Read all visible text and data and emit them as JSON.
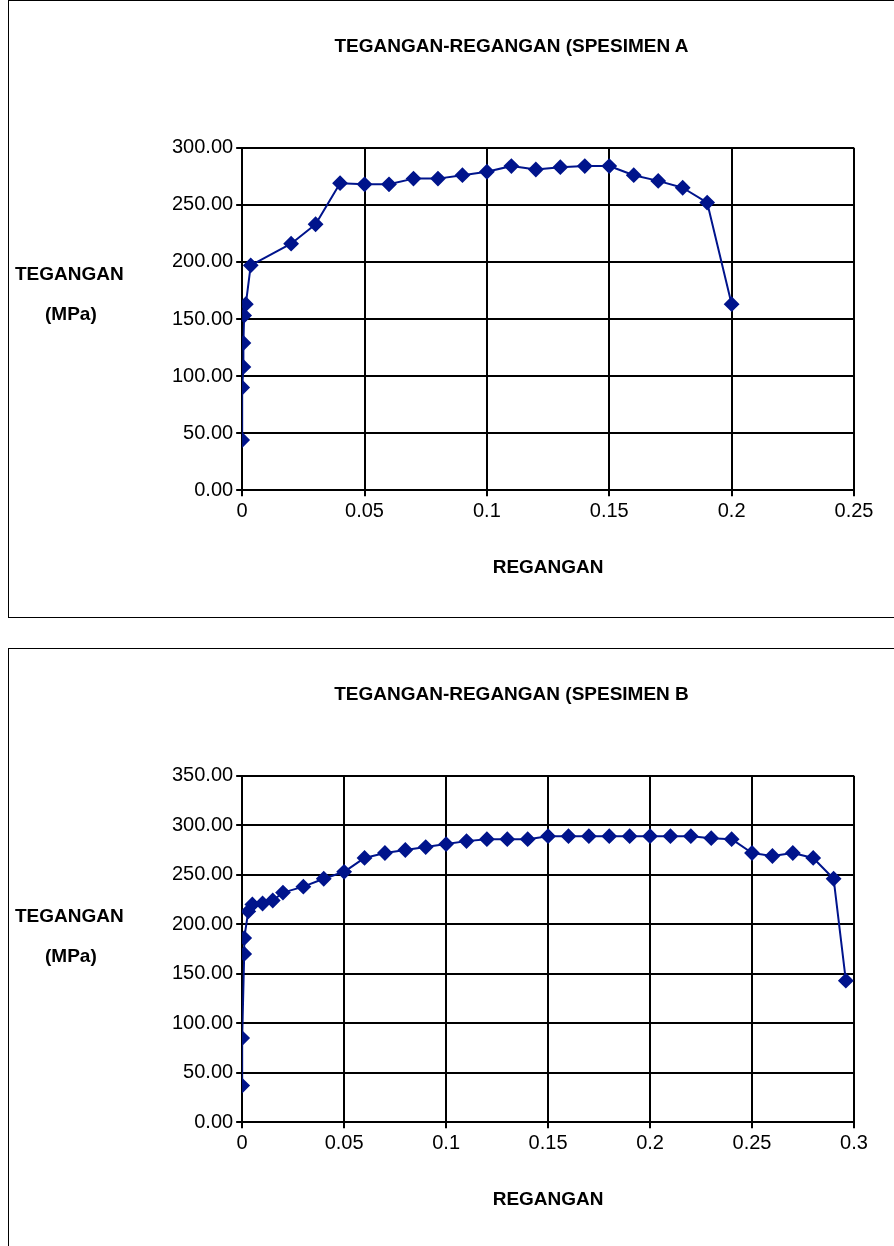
{
  "chart_data": [
    {
      "type": "line",
      "title": "TEGANGAN-REGANGAN (SPESIMEN A",
      "xlabel": "REGANGAN",
      "ylabel": "TEGANGAN (MPa)",
      "grid": true,
      "legend": false,
      "marker": "diamond",
      "line_style": "solid",
      "xlim": [
        0,
        0.25
      ],
      "xticks": [
        0,
        0.05,
        0.1,
        0.15,
        0.2,
        0.25
      ],
      "ylim": [
        0,
        300
      ],
      "yticks": [
        {
          "value": 0,
          "label": "0.00"
        },
        {
          "value": 50,
          "label": "50.00"
        },
        {
          "value": 100,
          "label": "100.00"
        },
        {
          "value": 150,
          "label": "150.00"
        },
        {
          "value": 200,
          "label": "200.00"
        },
        {
          "value": 250,
          "label": "250.00"
        },
        {
          "value": 300,
          "label": "300.00"
        }
      ],
      "series": [
        {
          "color": "#00148c",
          "x": [
            0,
            0,
            0.0005,
            0.0005,
            0.0008,
            0.0015,
            0.0035,
            0.02,
            0.03,
            0.04,
            0.05,
            0.06,
            0.07,
            0.08,
            0.09,
            0.1,
            0.11,
            0.12,
            0.13,
            0.14,
            0.15,
            0.16,
            0.17,
            0.18,
            0.19,
            0.2
          ],
          "values": [
            44,
            90,
            108,
            129,
            153,
            163,
            197,
            216,
            233,
            269,
            268,
            268,
            273,
            273,
            276,
            279,
            284,
            281,
            283,
            284,
            284,
            276,
            271,
            265,
            252,
            163
          ]
        }
      ]
    },
    {
      "type": "line",
      "title": "TEGANGAN-REGANGAN (SPESIMEN B",
      "xlabel": "REGANGAN",
      "ylabel": "TEGANGAN (MPa)",
      "grid": true,
      "legend": false,
      "marker": "diamond",
      "line_style": "solid",
      "xlim": [
        0,
        0.3
      ],
      "xticks": [
        0,
        0.05,
        0.1,
        0.15,
        0.2,
        0.25,
        0.3
      ],
      "ylim": [
        0,
        350
      ],
      "yticks": [
        {
          "value": 0,
          "label": "0.00"
        },
        {
          "value": 50,
          "label": "50.00"
        },
        {
          "value": 100,
          "label": "100.00"
        },
        {
          "value": 150,
          "label": "150.00"
        },
        {
          "value": 200,
          "label": "200.00"
        },
        {
          "value": 250,
          "label": "250.00"
        },
        {
          "value": 300,
          "label": "300.00"
        },
        {
          "value": 350,
          "label": "350.00"
        }
      ],
      "series": [
        {
          "color": "#00148c",
          "x": [
            0,
            0,
            0.001,
            0.001,
            0.003,
            0.005,
            0.01,
            0.015,
            0.02,
            0.03,
            0.04,
            0.05,
            0.06,
            0.07,
            0.08,
            0.09,
            0.1,
            0.11,
            0.12,
            0.13,
            0.14,
            0.15,
            0.16,
            0.17,
            0.18,
            0.19,
            0.2,
            0.21,
            0.22,
            0.23,
            0.24,
            0.25,
            0.26,
            0.27,
            0.28,
            0.29,
            0.296
          ],
          "values": [
            37,
            85,
            170,
            186,
            213,
            220,
            221,
            224,
            232,
            238,
            246,
            253,
            267,
            272,
            275,
            278,
            281,
            284,
            286,
            286,
            286,
            289,
            289,
            289,
            289,
            289,
            289,
            289,
            289,
            287,
            286,
            272,
            269,
            272,
            267,
            246,
            143
          ]
        }
      ]
    }
  ]
}
